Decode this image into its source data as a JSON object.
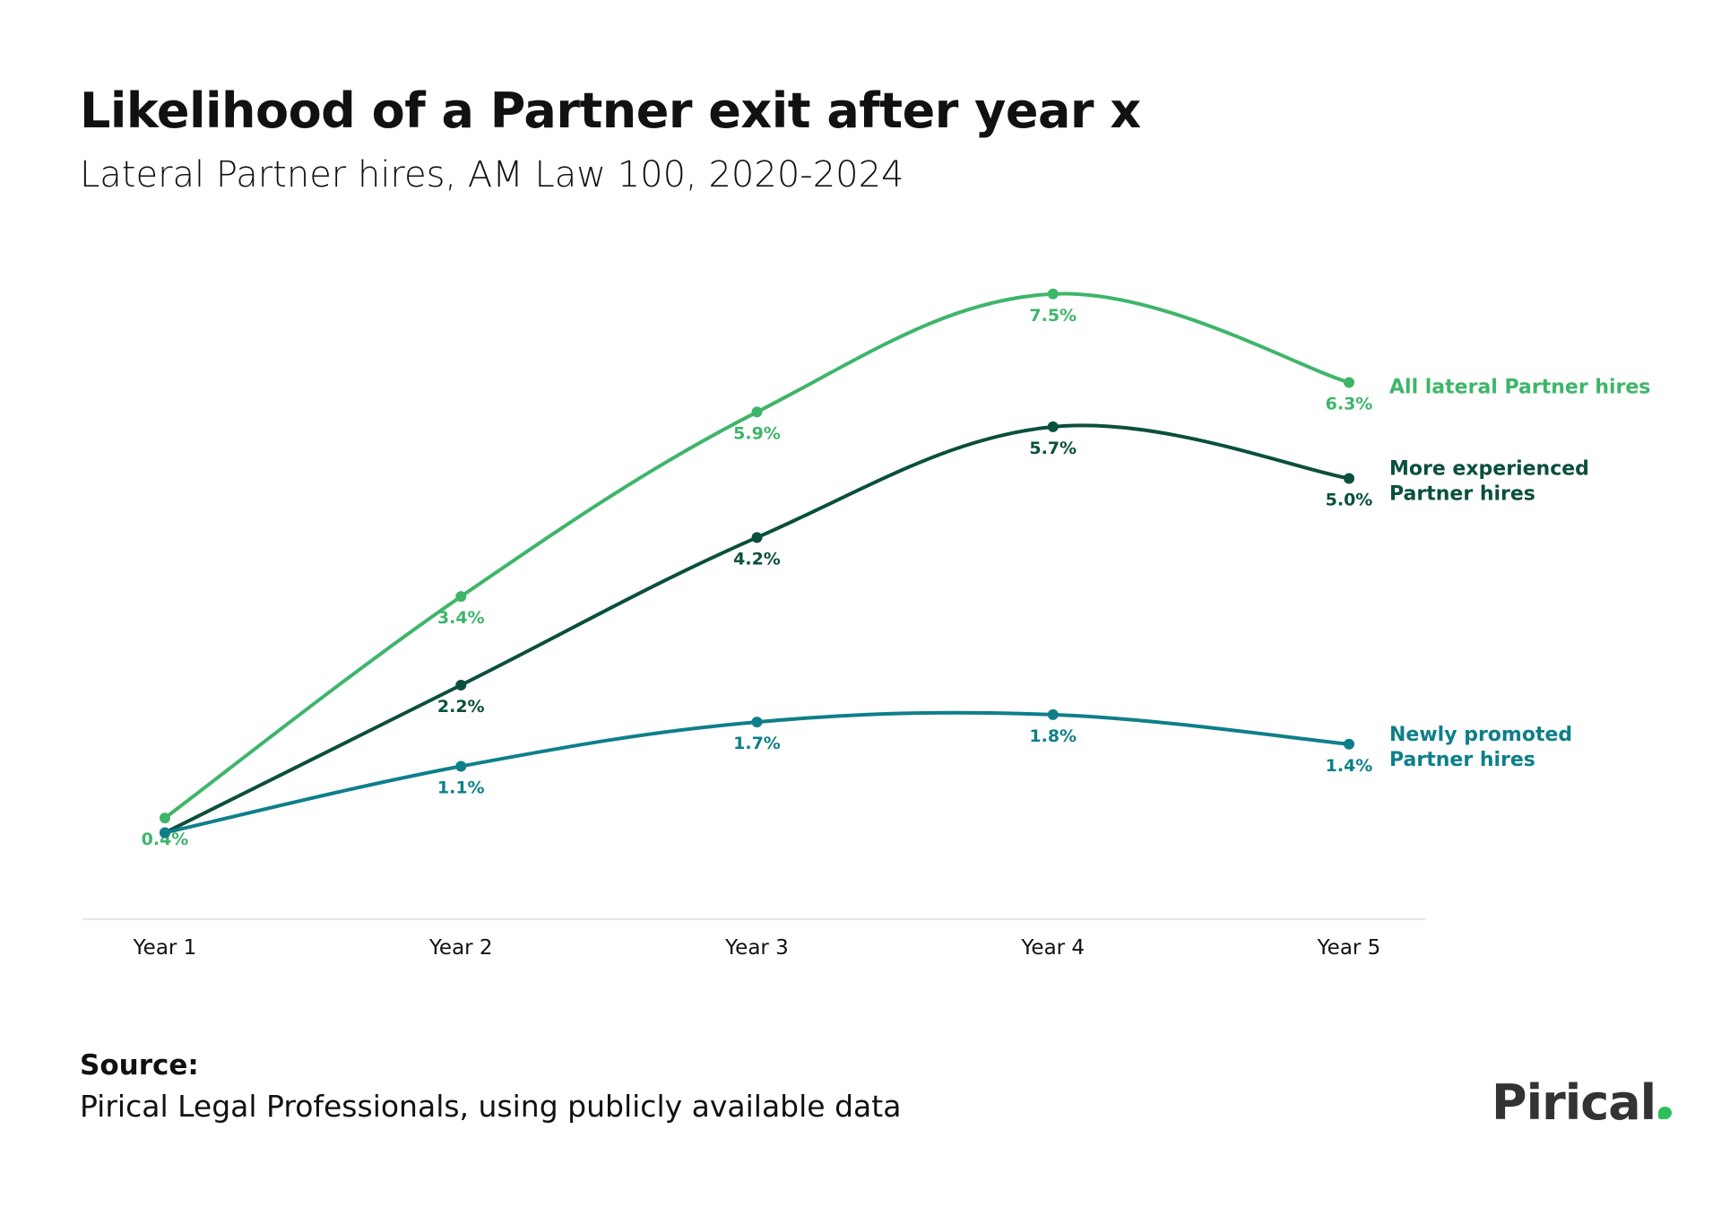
{
  "title": "Likelihood of a Partner exit after year x",
  "subtitle": "Lateral Partner hires, AM Law 100, 2020-2024",
  "source_label": "Source:",
  "source_text": "Pirical Legal Professionals, using publicly available data",
  "logo": {
    "text": "Pirical",
    "dot_color": "#2dbe5a"
  },
  "chart_data": {
    "type": "line",
    "categories": [
      "Year 1",
      "Year 2",
      "Year 3",
      "Year 4",
      "Year 5"
    ],
    "ylim": [
      0,
      8
    ],
    "grid": false,
    "legend": "right, inline labels at line ends",
    "series": [
      {
        "name": "All lateral Partner hires",
        "color": "#3fb56a",
        "values": [
          0.4,
          3.4,
          5.9,
          7.5,
          6.3
        ],
        "labels": [
          "0.4%",
          "3.4%",
          "5.9%",
          "7.5%",
          "6.3%"
        ],
        "name_lines": [
          "All lateral Partner hires"
        ]
      },
      {
        "name": "More experienced Partner hires",
        "color": "#0b4f3e",
        "values": [
          0.2,
          2.2,
          4.2,
          5.7,
          5.0
        ],
        "labels": [
          "",
          "2.2%",
          "4.2%",
          "5.7%",
          "5.0%"
        ],
        "name_lines": [
          "More experienced",
          "Partner hires"
        ]
      },
      {
        "name": "Newly promoted Partner hires",
        "color": "#0e7f8a",
        "values": [
          0.2,
          1.1,
          1.7,
          1.8,
          1.4
        ],
        "labels": [
          "",
          "1.1%",
          "1.7%",
          "1.8%",
          "1.4%"
        ],
        "name_lines": [
          "Newly promoted",
          "Partner hires"
        ]
      }
    ]
  }
}
